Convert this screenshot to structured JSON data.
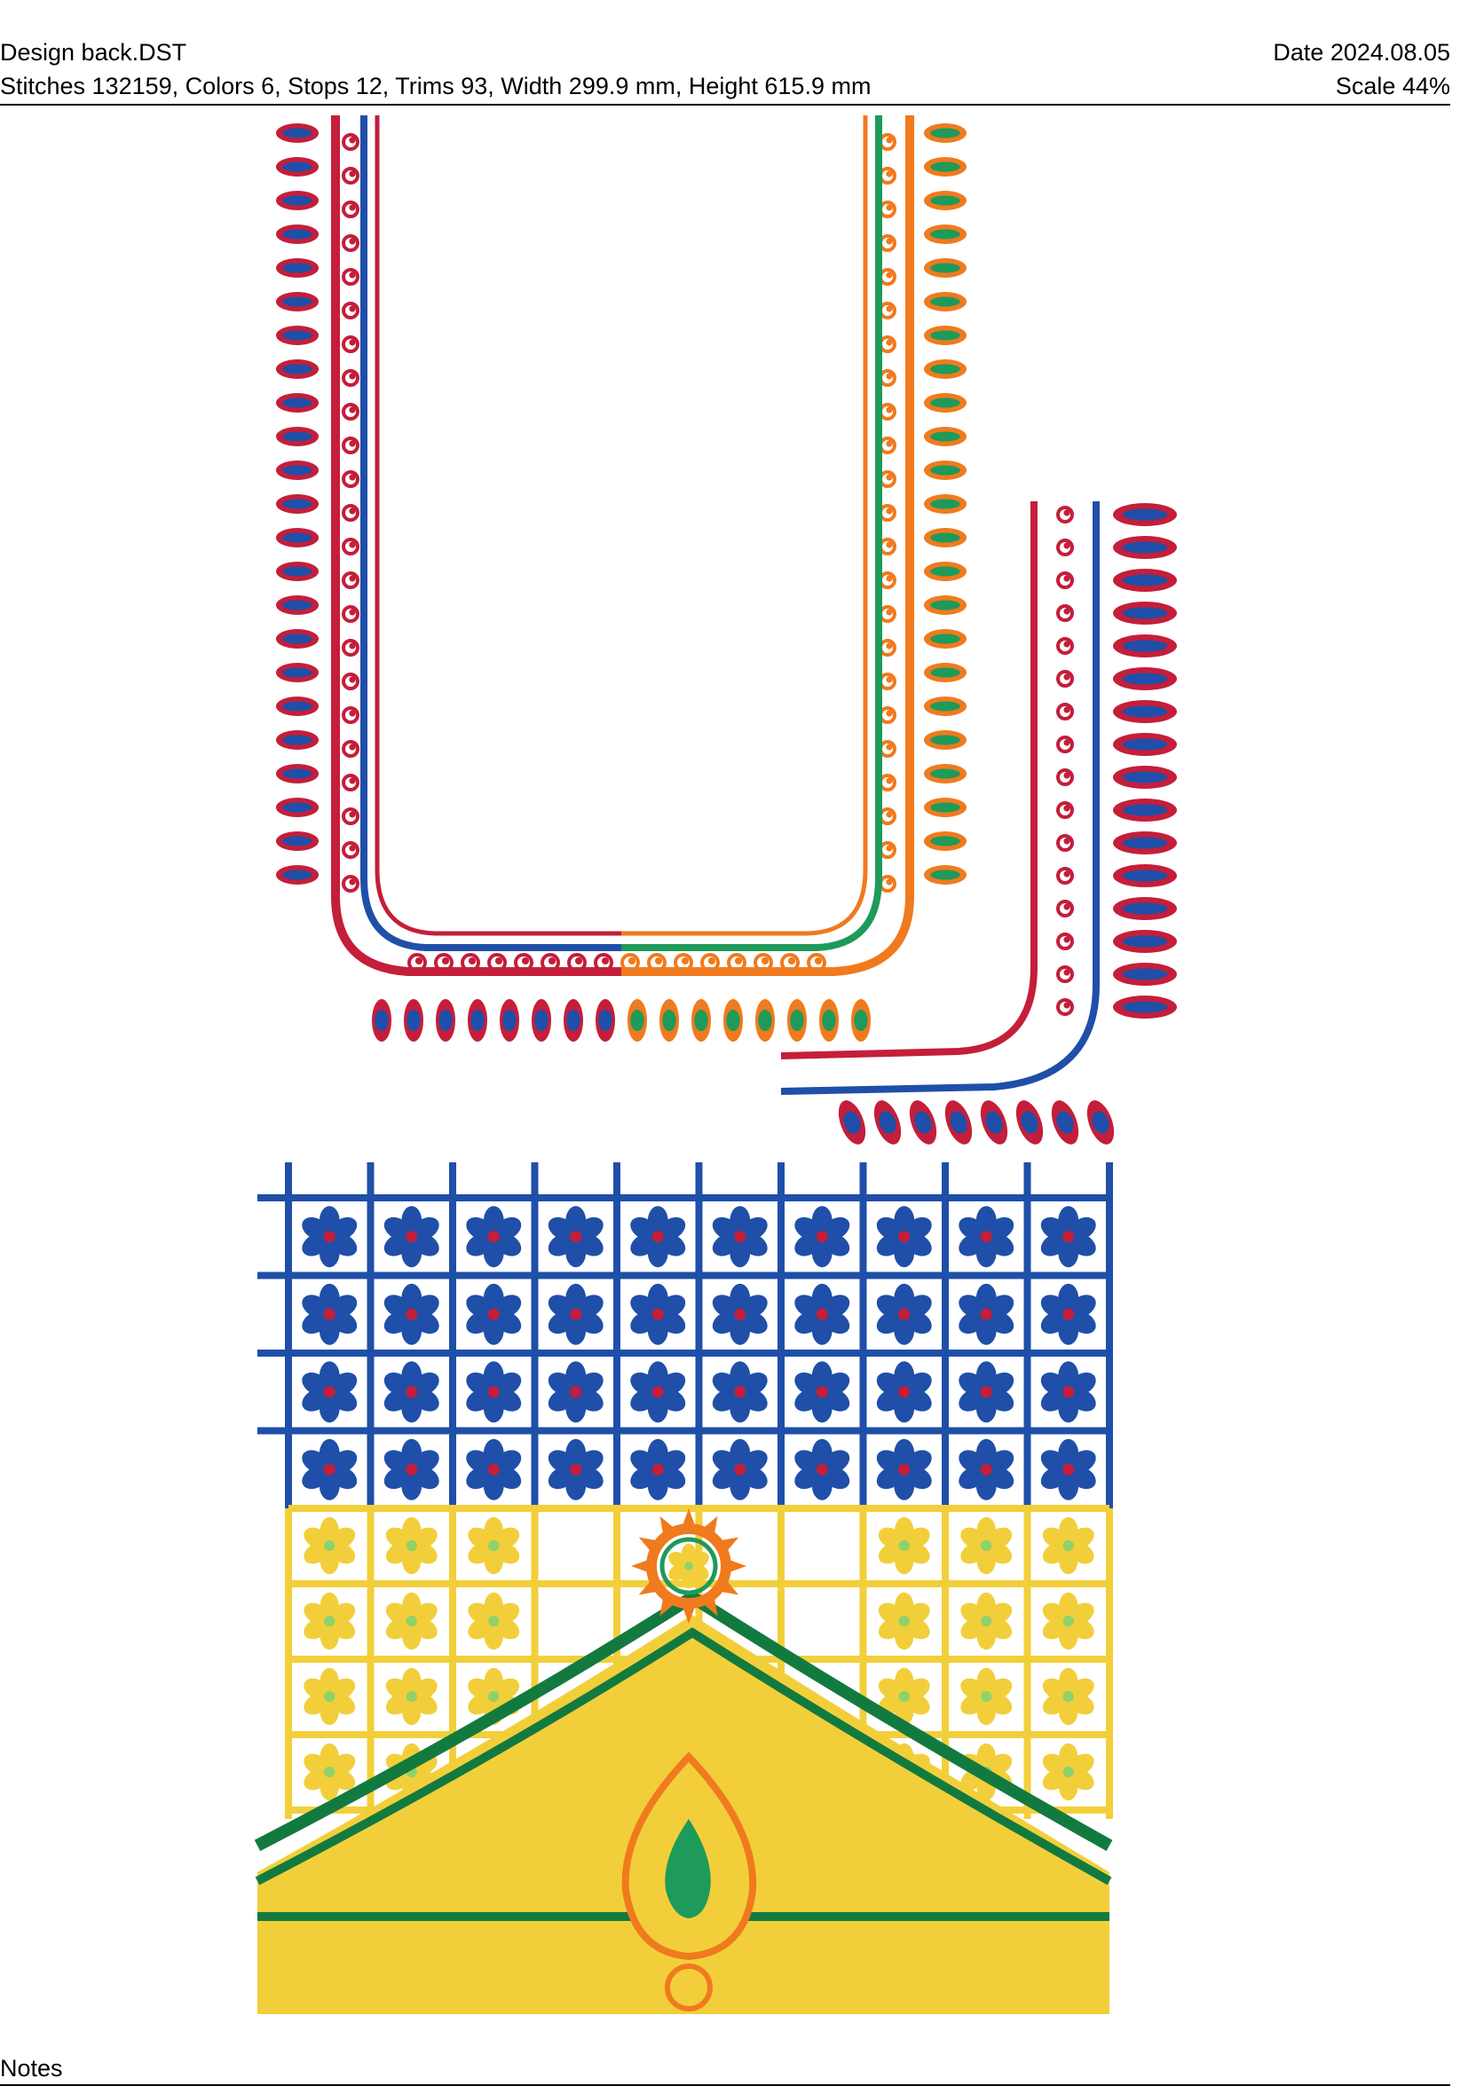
{
  "header": {
    "design_name": "Design back.DST",
    "date": "Date 2024.08.05",
    "stats": "Stitches 132159, Colors 6, Stops 12, Trims 93, Width 299.9 mm, Height 615.9 mm",
    "scale": "Scale 44%"
  },
  "footer": {
    "notes_label": "Notes"
  },
  "thread_colors": {
    "crimson": "#c41e3a",
    "royal_blue": "#1f4fa8",
    "orange": "#f07a1e",
    "green": "#1e9a5a",
    "gold": "#f2cf3a",
    "dark_green": "#137a3f"
  },
  "artwork": {
    "elements": [
      "neckline-u-border",
      "sleeve-border",
      "blue-flower-grid",
      "yellow-flower-grid",
      "paisley-yoke-motif"
    ]
  }
}
